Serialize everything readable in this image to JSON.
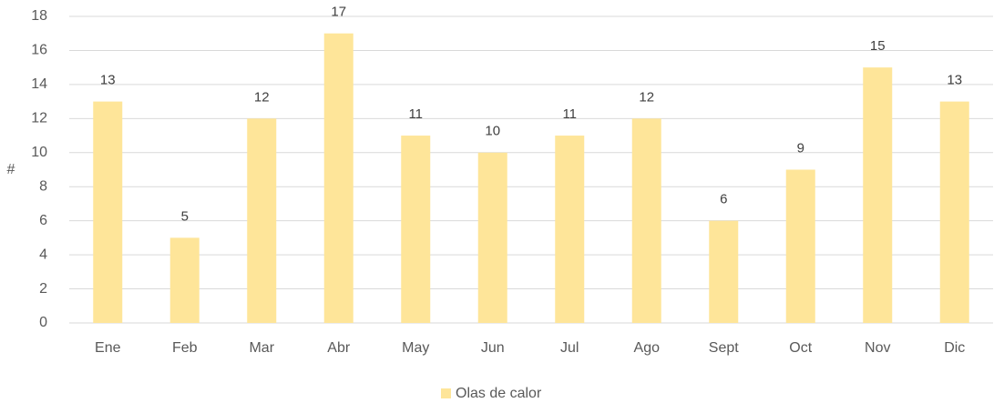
{
  "chart_data": {
    "type": "bar",
    "y_label": "#",
    "categories": [
      "Ene",
      "Feb",
      "Mar",
      "Abr",
      "May",
      "Jun",
      "Jul",
      "Ago",
      "Sept",
      "Oct",
      "Nov",
      "Dic"
    ],
    "series": [
      {
        "name": "Olas de calor",
        "color": "#fee599",
        "values": [
          13,
          5,
          12,
          17,
          11,
          10,
          11,
          12,
          6,
          9,
          15,
          13
        ]
      }
    ],
    "ylim": [
      0,
      18
    ],
    "yticks": [
      0,
      2,
      4,
      6,
      8,
      10,
      12,
      14,
      16,
      18
    ],
    "grid": true,
    "legend": "bottom"
  }
}
